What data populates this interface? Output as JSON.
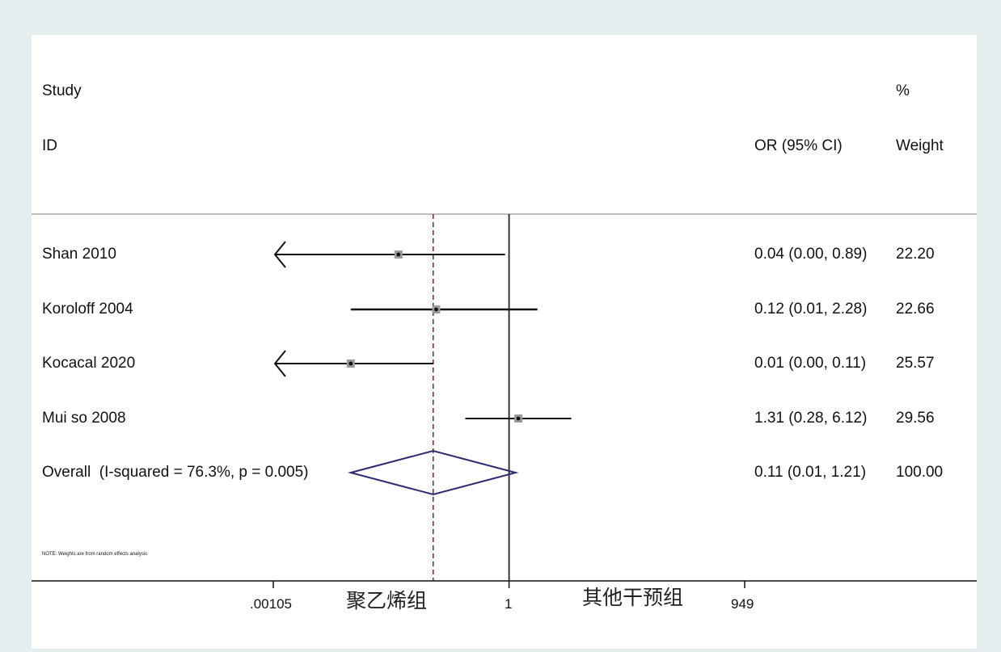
{
  "chart_data": {
    "type": "forest",
    "measure": "OR",
    "scale": "log",
    "header": {
      "study_line1": "Study",
      "study_line2": "ID",
      "effect_label": "OR (95% CI)",
      "weight_line1": "%",
      "weight_line2": "Weight"
    },
    "studies": [
      {
        "name": "Shan 2010",
        "or": 0.04,
        "lower": 0.0,
        "upper": 0.89,
        "weight": "22.20",
        "ci_text": "0.04 (0.00, 0.89)"
      },
      {
        "name": "Koroloff 2004",
        "or": 0.12,
        "lower": 0.01,
        "upper": 2.28,
        "weight": "22.66",
        "ci_text": "0.12 (0.01, 2.28)"
      },
      {
        "name": "Kocacal 2020",
        "or": 0.01,
        "lower": 0.0,
        "upper": 0.11,
        "weight": "25.57",
        "ci_text": "0.01 (0.00, 0.11)"
      },
      {
        "name": "Mui so 2008",
        "or": 1.31,
        "lower": 0.28,
        "upper": 6.12,
        "weight": "29.56",
        "ci_text": "1.31 (0.28, 6.12)"
      }
    ],
    "overall": {
      "label": "Overall  (I-squared = 76.3%, p = 0.005)",
      "or": 0.11,
      "lower": 0.01,
      "upper": 1.21,
      "ci_text": "0.11 (0.01, 1.21)",
      "weight": "100.00"
    },
    "note": "NOTE: Weights are from random effects analysis",
    "x_ticks": [
      {
        "value": 0.00105,
        "label": ".00105"
      },
      {
        "value": 1,
        "label": "1"
      },
      {
        "value": 949,
        "label": "949"
      }
    ],
    "xlim": [
      0.00105,
      949
    ],
    "favours_left": "聚乙烯组",
    "favours_right": "其他干预组",
    "colors": {
      "background": "#e4eeee",
      "panel": "#ffffff",
      "null_line": "#222222",
      "overall_line": "#8b1a1a",
      "diamond": "#2c2c6e",
      "ci_line": "#111111",
      "marker_box": "#9a9a9a"
    }
  }
}
